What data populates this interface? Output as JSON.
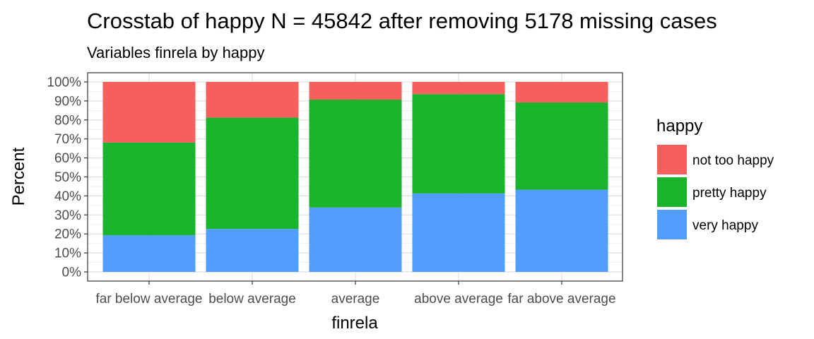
{
  "chart_data": {
    "type": "bar",
    "stacked": "percent",
    "title": "Crosstab of happy N = 45842 after removing 5178 missing cases",
    "subtitle": "Variables finrela by happy",
    "xlabel": "finrela",
    "ylabel": "Percent",
    "ylim": [
      0,
      100
    ],
    "yticks": [
      0,
      10,
      20,
      30,
      40,
      50,
      60,
      70,
      80,
      90,
      100
    ],
    "ytick_labels": [
      "0%",
      "10%",
      "20%",
      "30%",
      "40%",
      "50%",
      "60%",
      "70%",
      "80%",
      "90%",
      "100%"
    ],
    "categories": [
      "far below average",
      "below average",
      "average",
      "above average",
      "far above average"
    ],
    "series": [
      {
        "name": "very happy",
        "color": "#529EFF",
        "values": [
          19.3,
          22.6,
          33.9,
          41.3,
          43.3
        ]
      },
      {
        "name": "pretty happy",
        "color": "#19B32C",
        "values": [
          48.8,
          58.6,
          56.8,
          52.3,
          45.9
        ]
      },
      {
        "name": "not too happy",
        "color": "#F5605D",
        "values": [
          31.9,
          18.8,
          9.3,
          6.4,
          10.8
        ]
      }
    ],
    "legend": {
      "title": "happy",
      "position": "right",
      "entries": [
        "not too happy",
        "pretty happy",
        "very happy"
      ]
    },
    "grid": true
  }
}
